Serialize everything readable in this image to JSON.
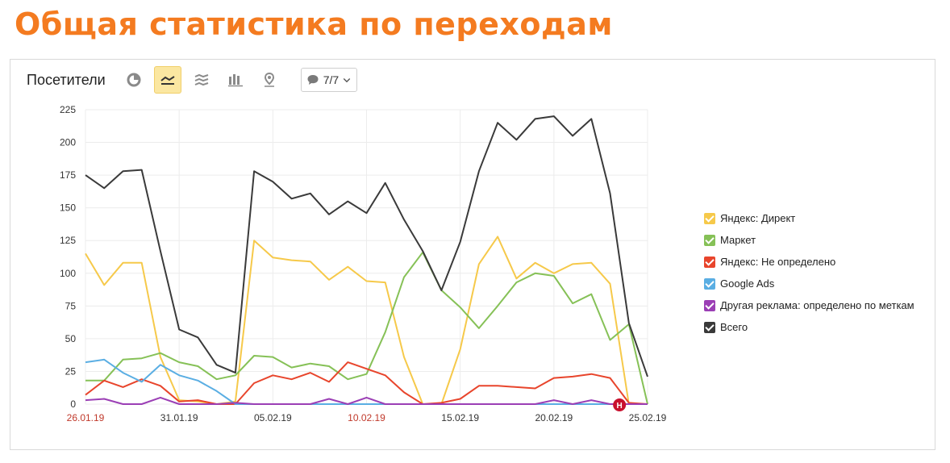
{
  "page": {
    "title": "Общая статистика по переходам"
  },
  "toolbar": {
    "metric_label": "Посетители",
    "buttons": [
      {
        "name": "pie-chart-icon",
        "active": false
      },
      {
        "name": "line-chart-icon",
        "active": true
      },
      {
        "name": "area-chart-icon",
        "active": false
      },
      {
        "name": "bar-chart-icon",
        "active": false
      },
      {
        "name": "map-icon",
        "active": false
      }
    ],
    "series_selector": "7/7"
  },
  "chart_data": {
    "type": "line",
    "ylim": [
      0,
      225
    ],
    "yticks": [
      0,
      25,
      50,
      75,
      100,
      125,
      150,
      175,
      200,
      225
    ],
    "x": [
      "26.01.19",
      "27.01.19",
      "28.01.19",
      "29.01.19",
      "30.01.19",
      "31.01.19",
      "01.02.19",
      "02.02.19",
      "03.02.19",
      "04.02.19",
      "05.02.19",
      "06.02.19",
      "07.02.19",
      "08.02.19",
      "09.02.19",
      "10.02.19",
      "11.02.19",
      "12.02.19",
      "13.02.19",
      "14.02.19",
      "15.02.19",
      "16.02.19",
      "17.02.19",
      "18.02.19",
      "19.02.19",
      "20.02.19",
      "21.02.19",
      "22.02.19",
      "23.02.19",
      "24.02.19",
      "25.02.19"
    ],
    "xtick_labels": [
      {
        "label": "26.01.19",
        "index": 0,
        "weekend": true
      },
      {
        "label": "31.01.19",
        "index": 5,
        "weekend": false
      },
      {
        "label": "05.02.19",
        "index": 10,
        "weekend": false
      },
      {
        "label": "10.02.19",
        "index": 15,
        "weekend": true
      },
      {
        "label": "15.02.19",
        "index": 20,
        "weekend": false
      },
      {
        "label": "20.02.19",
        "index": 25,
        "weekend": false
      },
      {
        "label": "25.02.19",
        "index": 30,
        "weekend": false
      }
    ],
    "marker": {
      "label": "Н",
      "index": 28.5,
      "color": "#c8102e"
    },
    "grid": true,
    "legend_position": "right",
    "series": [
      {
        "name": "Яндекс: Директ",
        "color": "#f6c94a",
        "values": [
          115,
          91,
          108,
          108,
          36,
          3,
          2,
          0,
          2,
          125,
          112,
          110,
          109,
          95,
          105,
          94,
          93,
          36,
          0,
          0,
          42,
          107,
          128,
          96,
          108,
          100,
          107,
          108,
          92,
          0,
          0
        ]
      },
      {
        "name": "Маркет",
        "color": "#86c157",
        "values": [
          18,
          18,
          34,
          35,
          39,
          32,
          29,
          19,
          22,
          37,
          36,
          28,
          31,
          29,
          19,
          23,
          55,
          97,
          116,
          87,
          74,
          58,
          75,
          93,
          100,
          98,
          77,
          84,
          49,
          61,
          0
        ]
      },
      {
        "name": "Яндекс: Не определено",
        "color": "#e8452c",
        "values": [
          7,
          18,
          13,
          19,
          14,
          2,
          3,
          0,
          0,
          16,
          22,
          19,
          24,
          17,
          32,
          27,
          22,
          9,
          0,
          1,
          4,
          14,
          14,
          13,
          12,
          20,
          21,
          23,
          20,
          1,
          0
        ]
      },
      {
        "name": "Google Ads",
        "color": "#5aaee3",
        "values": [
          32,
          34,
          24,
          17,
          30,
          22,
          18,
          10,
          0,
          0,
          0,
          0,
          0,
          0,
          0,
          0,
          0,
          0,
          0,
          0,
          0,
          0,
          0,
          0,
          0,
          0,
          0,
          0,
          0,
          0,
          0
        ]
      },
      {
        "name": "Другая реклама: определено по меткам",
        "color": "#9b3fb5",
        "values": [
          3,
          4,
          0,
          0,
          5,
          0,
          0,
          0,
          1,
          0,
          0,
          0,
          0,
          4,
          0,
          5,
          0,
          0,
          0,
          0,
          0,
          0,
          0,
          0,
          0,
          3,
          0,
          3,
          0,
          0,
          0
        ]
      },
      {
        "name": "Всего",
        "color": "#3a3a3a",
        "values": [
          175,
          165,
          178,
          179,
          117,
          57,
          51,
          30,
          24,
          178,
          170,
          157,
          161,
          145,
          155,
          146,
          169,
          141,
          117,
          87,
          124,
          178,
          215,
          202,
          218,
          220,
          205,
          218,
          161,
          62,
          21
        ]
      }
    ]
  }
}
